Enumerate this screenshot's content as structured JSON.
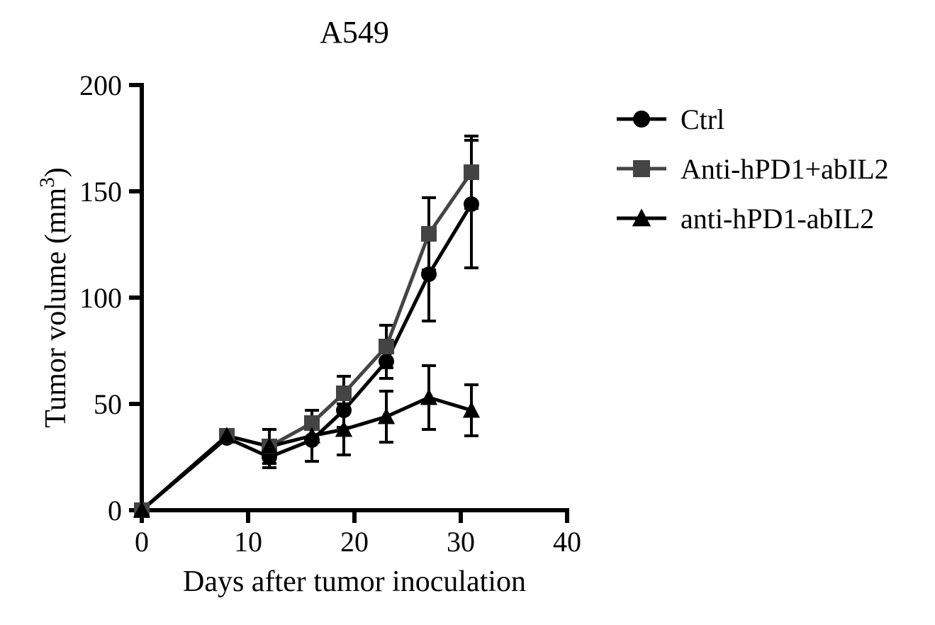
{
  "chart": {
    "type": "line",
    "title": "A549",
    "title_fontsize": 44,
    "title_color": "#000000",
    "xlabel": "Days after tumor inoculation",
    "ylabel": "Tumor volume (mm",
    "ylabel_sup": "3",
    "ylabel_close": ")",
    "axis_label_fontsize": 42,
    "tick_fontsize": 40,
    "xlim": [
      0,
      40
    ],
    "ylim": [
      0,
      200
    ],
    "xticks": [
      0,
      10,
      20,
      30,
      40
    ],
    "yticks": [
      0,
      50,
      100,
      150,
      200
    ],
    "xtick_labels": [
      "0",
      "10",
      "20",
      "30",
      "40"
    ],
    "ytick_labels": [
      "0",
      "50",
      "100",
      "150",
      "200"
    ],
    "axis_color": "#000000",
    "axis_stroke_width": 6,
    "tick_length": 18,
    "plot_bg": "#ffffff",
    "line_width": 5,
    "marker_size": 11,
    "error_cap_halfwidth": 10,
    "error_bar_width": 4,
    "series": [
      {
        "id": "ctrl",
        "label": "Ctrl",
        "marker": "circle",
        "color": "#000000",
        "x": [
          0,
          8,
          12,
          16,
          19,
          23,
          27,
          31
        ],
        "y": [
          0,
          34,
          25,
          33,
          47,
          70,
          111,
          144
        ],
        "err": [
          0,
          0,
          5,
          0,
          8,
          8,
          22,
          30
        ]
      },
      {
        "id": "combo",
        "label": "Anti-hPD1+abIL2",
        "marker": "square",
        "color": "#444444",
        "x": [
          0,
          8,
          12,
          16,
          19,
          23,
          27,
          31
        ],
        "y": [
          0,
          35,
          30,
          41,
          55,
          77,
          130,
          159
        ],
        "err": [
          0,
          0,
          8,
          0,
          8,
          10,
          17,
          17
        ]
      },
      {
        "id": "fusion",
        "label": "anti-hPD1-abIL2",
        "marker": "triangle",
        "color": "#000000",
        "x": [
          0,
          8,
          12,
          16,
          19,
          23,
          27,
          31
        ],
        "y": [
          0,
          35,
          30,
          35,
          38,
          44,
          53,
          47
        ],
        "err": [
          0,
          0,
          0,
          12,
          12,
          12,
          15,
          12
        ]
      }
    ],
    "legend": {
      "fontsize": 40,
      "line_length": 70,
      "marker_size": 12
    }
  }
}
